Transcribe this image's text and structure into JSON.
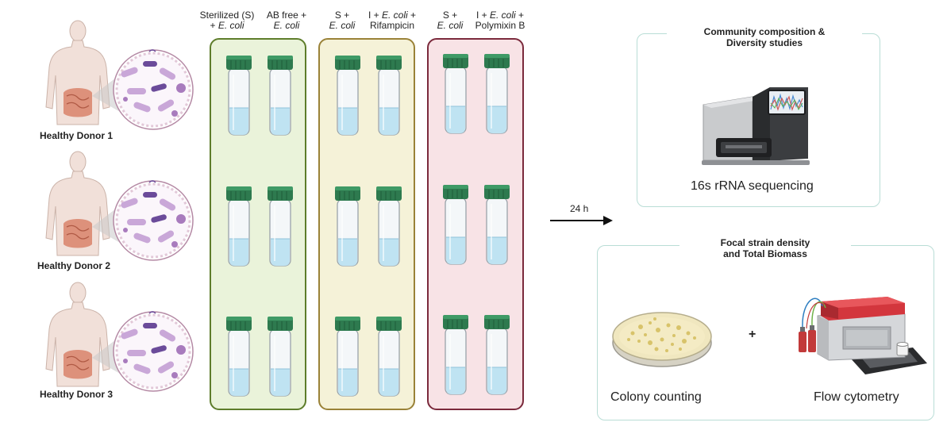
{
  "donors": [
    {
      "label": "Healthy Donor 1"
    },
    {
      "label": "Healthy Donor 2"
    },
    {
      "label": "Healthy Donor 3"
    }
  ],
  "conditions": [
    {
      "line1": "Sterilized (S)",
      "line2_prefix": "+ ",
      "line2_italic": "E. coli",
      "line2_suffix": ""
    },
    {
      "line1": "AB free +",
      "line2_prefix": "",
      "line2_italic": "E. coli",
      "line2_suffix": ""
    },
    {
      "line1": "S +",
      "line2_prefix": "",
      "line2_italic": "E. coli",
      "line2_suffix": ""
    },
    {
      "line1_prefix": "I + ",
      "line1_italic": "E. coli",
      "line1_suffix": " +",
      "line2": "Rifampicin"
    },
    {
      "line1": "S +",
      "line2_prefix": "",
      "line2_italic": "E. coli",
      "line2_suffix": ""
    },
    {
      "line1_prefix": "I + ",
      "line1_italic": "E. coli",
      "line1_suffix": " +",
      "line2": "Polymixin B"
    }
  ],
  "groups": [
    {
      "name": "group-1",
      "fill": "#eaf3da",
      "stroke": "#5e7d2b"
    },
    {
      "name": "group-2",
      "fill": "#f5f2d8",
      "stroke": "#9a8238"
    },
    {
      "name": "group-3",
      "fill": "#f8e3e6",
      "stroke": "#7b2a3c"
    }
  ],
  "arrow": {
    "label": "24 h"
  },
  "panel_top": {
    "title_line1": "Community composition &",
    "title_line2": "Diversity studies",
    "method": "16s rRNA sequencing"
  },
  "panel_bottom": {
    "title_line1": "Focal strain density",
    "title_line2": "and Total Biomass",
    "method_left": "Colony counting",
    "plus": "+",
    "method_right": "Flow cytometry"
  },
  "colors": {
    "tube_cap": "#2e7a4f",
    "tube_liquid": "#bfe3f2",
    "skin": "#f1e0d9",
    "gut": "#d9826a",
    "bacteria": "#c9a7d8",
    "panel_border": "#b9ddd6"
  }
}
